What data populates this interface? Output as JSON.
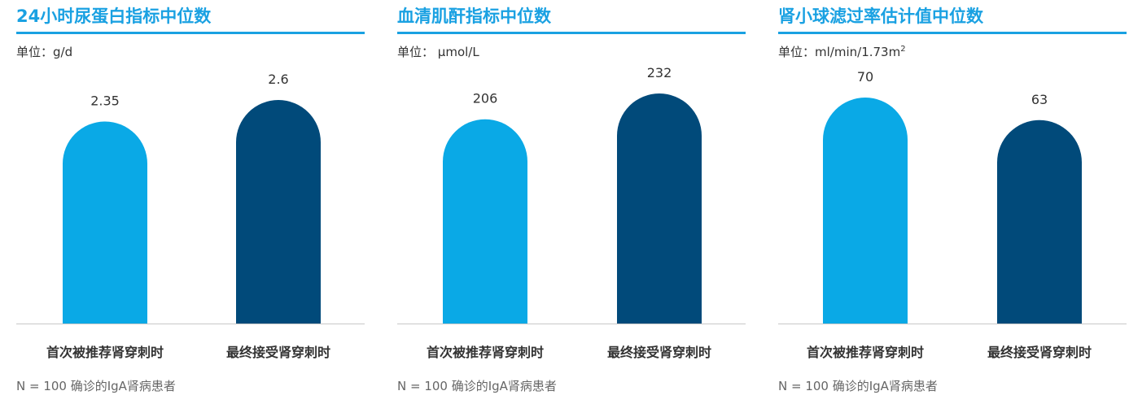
{
  "colors": {
    "accent": "#1aa1e2",
    "series_first": "#0aa9e6",
    "series_final": "#014a7a",
    "axis": "#c8c8c8"
  },
  "chart_data": [
    {
      "type": "bar",
      "title": "24小时尿蛋白指标中位数",
      "unit_prefix": "单位：",
      "unit": "g/d",
      "unit_sup": "",
      "categories": [
        "首次被推荐肾穿刺时",
        "最终接受肾穿刺时"
      ],
      "values": [
        2.35,
        2.6
      ],
      "value_labels": [
        "2.35",
        "2.6"
      ],
      "footnote": "N = 100 确诊的IgA肾病患者"
    },
    {
      "type": "bar",
      "title": "血清肌酐指标中位数",
      "unit_prefix": "单位：",
      "unit": " μmol/L",
      "unit_sup": "",
      "categories": [
        "首次被推荐肾穿刺时",
        "最终接受肾穿刺时"
      ],
      "values": [
        206,
        232
      ],
      "value_labels": [
        "206",
        "232"
      ],
      "footnote": "N = 100 确诊的IgA肾病患者"
    },
    {
      "type": "bar",
      "title": "肾小球滤过率估计值中位数",
      "unit_prefix": "单位：",
      "unit": "ml/min/1.73m",
      "unit_sup": "2",
      "categories": [
        "首次被推荐肾穿刺时",
        "最终接受肾穿刺时"
      ],
      "values": [
        70,
        63
      ],
      "value_labels": [
        "70",
        "63"
      ],
      "footnote": "N = 100 确诊的IgA肾病患者"
    }
  ]
}
